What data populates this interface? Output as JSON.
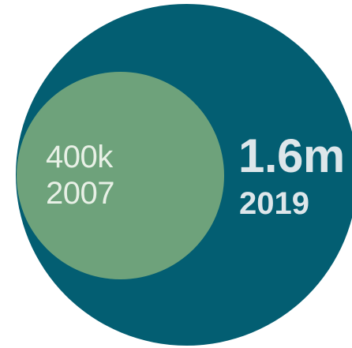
{
  "chart_data": {
    "type": "bubble",
    "series": [
      {
        "label": "1.6m",
        "year": "2019",
        "value": 1600000,
        "color": "#035e72"
      },
      {
        "label": "400k",
        "year": "2007",
        "value": 400000,
        "color": "#6ea27b"
      }
    ]
  }
}
